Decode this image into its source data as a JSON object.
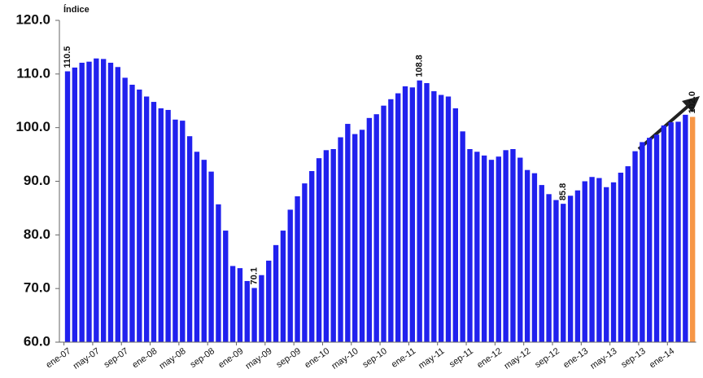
{
  "chart_data": {
    "type": "bar",
    "y_label": "Índice",
    "categories": [
      "ene-07",
      null,
      null,
      null,
      "may-07",
      null,
      null,
      null,
      "sep-07",
      null,
      null,
      null,
      "ene-08",
      null,
      null,
      null,
      "may-08",
      null,
      null,
      null,
      "sep-08",
      null,
      null,
      null,
      "ene-09",
      null,
      null,
      null,
      "may-09",
      null,
      null,
      null,
      "sep-09",
      null,
      null,
      null,
      "ene-10",
      null,
      null,
      null,
      "may-10",
      null,
      null,
      null,
      "sep-10",
      null,
      null,
      null,
      "ene-11",
      null,
      null,
      null,
      "may-11",
      null,
      null,
      null,
      "sep-11",
      null,
      null,
      null,
      "ene-12",
      null,
      null,
      null,
      "may-12",
      null,
      null,
      null,
      "sep-12",
      null,
      null,
      null,
      "ene-13",
      null,
      null,
      null,
      "may-13",
      null,
      null,
      null,
      "sep-13",
      null,
      null,
      null,
      "ene-14",
      null,
      null,
      null
    ],
    "values": [
      110.5,
      111.2,
      112.1,
      112.3,
      112.9,
      112.8,
      112.1,
      111.3,
      109.3,
      108.0,
      107.1,
      105.8,
      104.8,
      103.6,
      103.3,
      101.5,
      101.3,
      98.4,
      95.5,
      94.0,
      91.8,
      85.7,
      80.8,
      74.2,
      73.8,
      71.4,
      70.1,
      72.5,
      75.2,
      78.1,
      80.8,
      84.7,
      87.2,
      89.6,
      91.9,
      94.3,
      95.8,
      96.0,
      98.2,
      100.7,
      98.8,
      99.6,
      101.8,
      102.5,
      104.1,
      105.3,
      106.4,
      107.7,
      107.5,
      108.8,
      108.3,
      106.8,
      106.1,
      105.8,
      103.6,
      99.3,
      96.0,
      95.5,
      94.8,
      94.0,
      94.6,
      95.8,
      96.0,
      94.4,
      92.1,
      91.5,
      89.3,
      87.6,
      86.5,
      85.8,
      87.3,
      88.3,
      90.0,
      90.8,
      90.6,
      88.9,
      89.8,
      91.6,
      92.8,
      95.6,
      97.3,
      98.1,
      98.7,
      100.4,
      101.0,
      101.1,
      102.4,
      102.0
    ],
    "value_labels": [
      "110.5",
      null,
      null,
      null,
      null,
      null,
      null,
      null,
      null,
      null,
      null,
      null,
      null,
      null,
      null,
      null,
      null,
      null,
      null,
      null,
      null,
      null,
      null,
      null,
      null,
      null,
      "70.1",
      null,
      null,
      null,
      null,
      null,
      null,
      null,
      null,
      null,
      null,
      null,
      null,
      null,
      null,
      null,
      null,
      null,
      null,
      null,
      null,
      null,
      null,
      "108.8",
      null,
      null,
      null,
      null,
      null,
      null,
      null,
      null,
      null,
      null,
      null,
      null,
      null,
      null,
      null,
      null,
      null,
      null,
      null,
      "85.8",
      null,
      null,
      null,
      null,
      null,
      null,
      null,
      null,
      null,
      null,
      null,
      null,
      null,
      null,
      null,
      null,
      null,
      "102.0"
    ],
    "colors": [
      "#2121ee",
      "#2121ee",
      "#2121ee",
      "#2121ee",
      "#2121ee",
      "#2121ee",
      "#2121ee",
      "#2121ee",
      "#2121ee",
      "#2121ee",
      "#2121ee",
      "#2121ee",
      "#2121ee",
      "#2121ee",
      "#2121ee",
      "#2121ee",
      "#2121ee",
      "#2121ee",
      "#2121ee",
      "#2121ee",
      "#2121ee",
      "#2121ee",
      "#2121ee",
      "#2121ee",
      "#2121ee",
      "#2121ee",
      "#2121ee",
      "#2121ee",
      "#2121ee",
      "#2121ee",
      "#2121ee",
      "#2121ee",
      "#2121ee",
      "#2121ee",
      "#2121ee",
      "#2121ee",
      "#2121ee",
      "#2121ee",
      "#2121ee",
      "#2121ee",
      "#2121ee",
      "#2121ee",
      "#2121ee",
      "#2121ee",
      "#2121ee",
      "#2121ee",
      "#2121ee",
      "#2121ee",
      "#2121ee",
      "#2121ee",
      "#2121ee",
      "#2121ee",
      "#2121ee",
      "#2121ee",
      "#2121ee",
      "#2121ee",
      "#2121ee",
      "#2121ee",
      "#2121ee",
      "#2121ee",
      "#2121ee",
      "#2121ee",
      "#2121ee",
      "#2121ee",
      "#2121ee",
      "#2121ee",
      "#2121ee",
      "#2121ee",
      "#2121ee",
      "#2121ee",
      "#2121ee",
      "#2121ee",
      "#2121ee",
      "#2121ee",
      "#2121ee",
      "#2121ee",
      "#2121ee",
      "#2121ee",
      "#2121ee",
      "#2121ee",
      "#2121ee",
      "#2121ee",
      "#2121ee",
      "#2121ee",
      "#2121ee",
      "#2121ee",
      "#2121ee",
      "#f79646"
    ],
    "ylim": [
      60,
      120
    ],
    "yticks": [
      {
        "value": 60,
        "label": "60.0"
      },
      {
        "value": 70,
        "label": "70.0"
      },
      {
        "value": 80,
        "label": "80.0"
      },
      {
        "value": 90,
        "label": "90.0"
      },
      {
        "value": 100,
        "label": "100.0"
      },
      {
        "value": 110,
        "label": "110.0"
      },
      {
        "value": 120,
        "label": "120.0"
      }
    ],
    "grid": false
  }
}
